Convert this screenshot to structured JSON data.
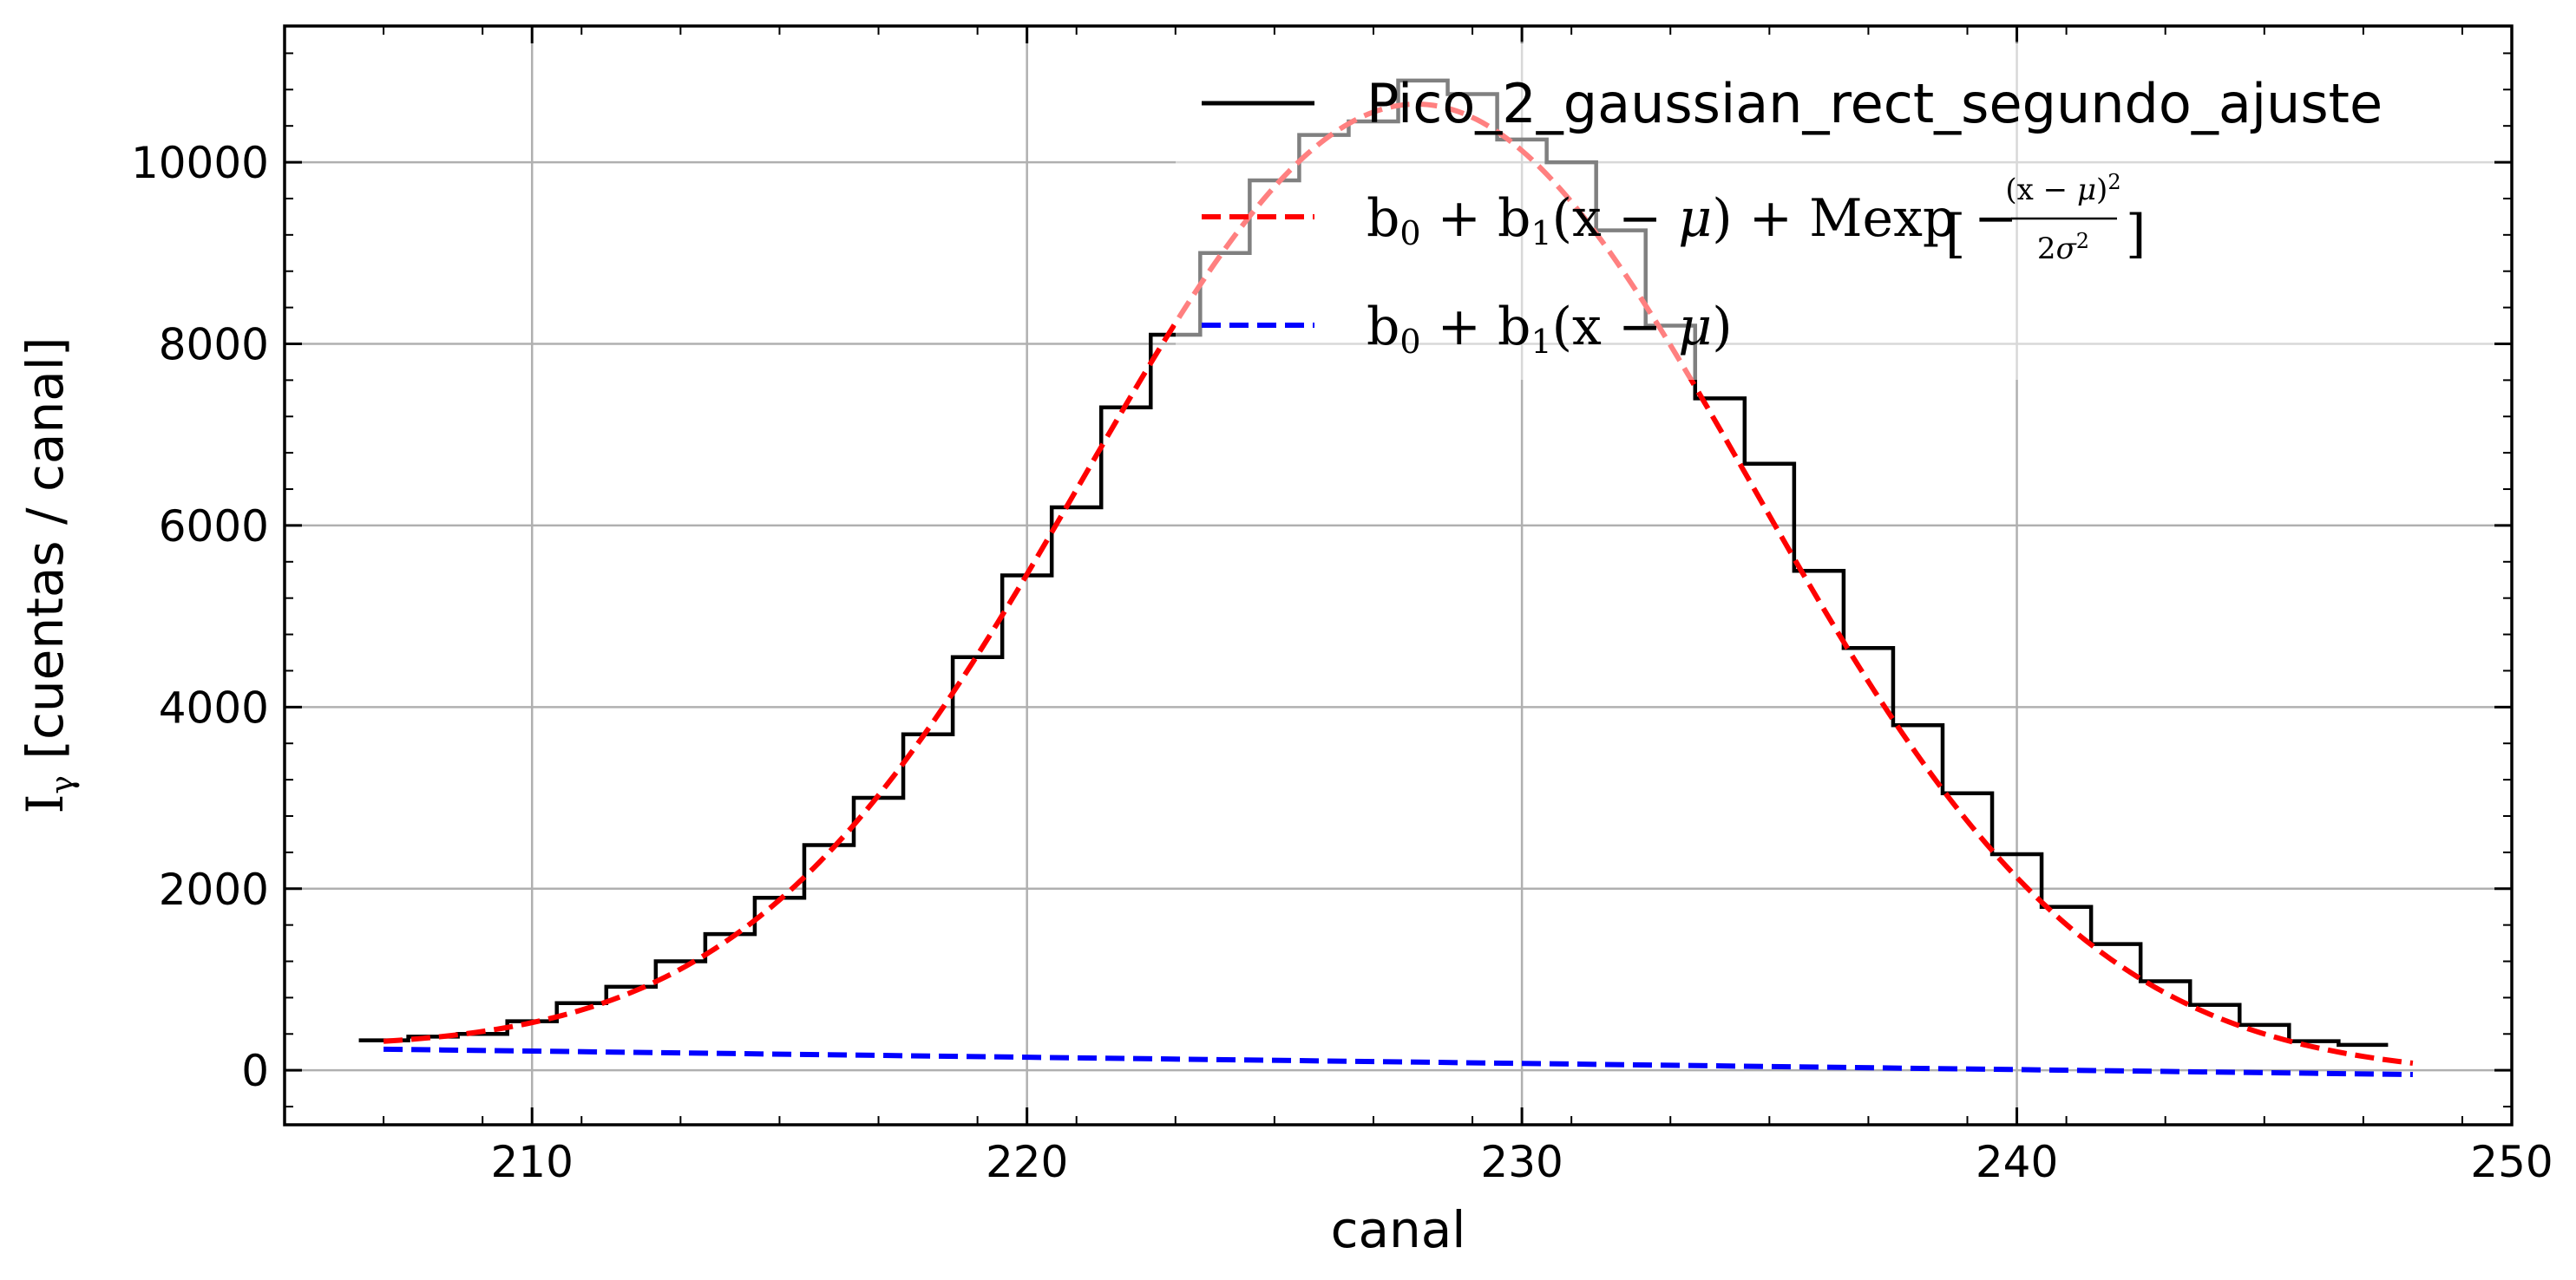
{
  "chart_data": {
    "type": "line",
    "xlabel": "canal",
    "ylabel_main": "I",
    "ylabel_sub": "γ",
    "ylabel_rest": " [cuentas / canal]",
    "xlim": [
      205,
      250
    ],
    "ylim": [
      -600,
      11500
    ],
    "xticks": [
      210,
      220,
      230,
      240,
      250
    ],
    "yticks": [
      0,
      2000,
      4000,
      6000,
      8000,
      10000
    ],
    "grid": true,
    "legend_position": "top-right",
    "colors": {
      "data": "#000000",
      "fit": "#ff0000",
      "baseline": "#0000ff",
      "grid": "#b0b0b0"
    },
    "series": [
      {
        "name": "Pico_2_gaussian_rect_segundo_ajuste",
        "style": "step",
        "x": [
          207,
          208,
          209,
          210,
          211,
          212,
          213,
          214,
          215,
          216,
          217,
          218,
          219,
          220,
          221,
          222,
          223,
          224,
          225,
          226,
          227,
          228,
          229,
          230,
          231,
          232,
          233,
          234,
          235,
          236,
          237,
          238,
          239,
          240,
          241,
          242,
          243,
          244,
          245,
          246,
          247
        ],
        "y": [
          330,
          370,
          400,
          540,
          740,
          920,
          1200,
          1500,
          1900,
          2480,
          3000,
          3700,
          4550,
          5450,
          6200,
          7300,
          8100,
          9000,
          9800,
          10300,
          10450,
          10900,
          10750,
          10250,
          10000,
          9250,
          8200,
          7400,
          6680,
          5500,
          4650,
          3800,
          3050,
          2380,
          1800,
          1390,
          980,
          720,
          500,
          320,
          280
        ]
      },
      {
        "name": "b0+b1(x−μ)+Mexp[−(x−μ)²/2σ²]",
        "style": "dashed",
        "params": {
          "b0": 90,
          "b1": -6.8,
          "mu": 227.9,
          "M": 10550,
          "sigma": 6.75
        },
        "x_range": [
          207,
          248
        ]
      },
      {
        "name": "b0+b1(x−μ)",
        "style": "dashed",
        "params": {
          "b0": 90,
          "b1": -6.8,
          "mu": 227.9
        },
        "x_range": [
          207,
          248
        ]
      }
    ],
    "legend": {
      "entries": [
        "Pico_2_gaussian_rect_segundo_ajuste",
        "b0+b1(x−μ)+Mexp[−(x−μ)²/2σ²]",
        "b0+b1(x−μ)"
      ]
    }
  }
}
